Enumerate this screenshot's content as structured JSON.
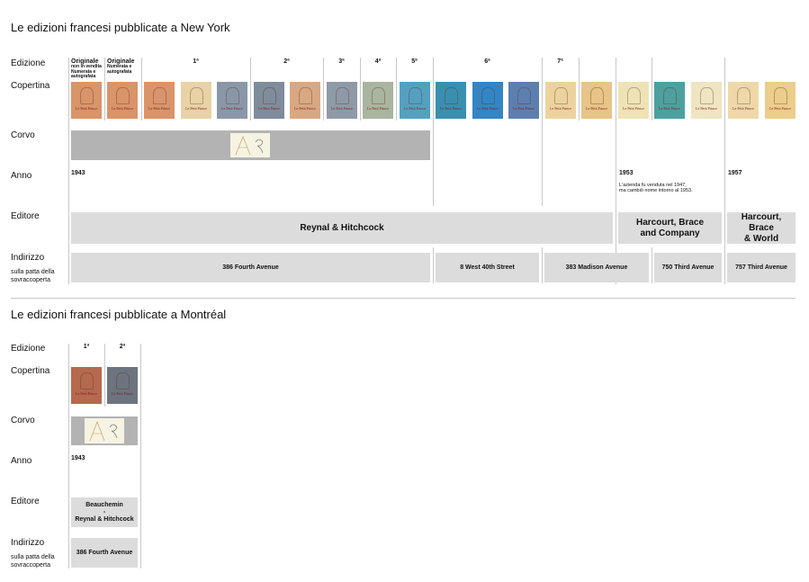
{
  "ny": {
    "title": "Le edizioni francesi pubblicate a New York",
    "labels": {
      "edizione": "Edizione",
      "copertina": "Copertina",
      "corvo": "Corvo",
      "anno": "Anno",
      "editore": "Editore",
      "indirizzo": "Indirizzo",
      "indirizzo_sub1": "sulla patta della",
      "indirizzo_sub2": "sovraccoperta"
    },
    "editions": {
      "orig1": "Originale",
      "orig1_sub1": "non in vendita",
      "orig1_sub2": "Numerata e",
      "orig1_sub3": "autografata",
      "orig2": "Originale",
      "orig2_sub1": "Numerata e",
      "orig2_sub2": "autografata",
      "e1": "1ª",
      "e2": "2ª",
      "e3": "3ª",
      "e4": "4ª",
      "e5": "5ª",
      "e6": "6ª",
      "e7": "7ª"
    },
    "cover_title": "Le Petit Prince",
    "years": {
      "y1943": "1943",
      "y1953": "1953",
      "note1953_line1": "L'azienda fu venduta nel 1947,",
      "note1953_line2": "ma cambiò nome intorno al 1953.",
      "y1957": "1957"
    },
    "publishers": {
      "reynal": "Reynal & Hitchcock",
      "hb_line1": "Harcourt, Brace",
      "hb_line2": "and Company",
      "hbw_line1": "Harcourt,",
      "hbw_line2": "Brace",
      "hbw_line3": "& World"
    },
    "addresses": {
      "a1": "386 Fourth Avenue",
      "a2": "8 West 40th Street",
      "a3": "383 Madison Avenue",
      "a4": "750 Third Avenue",
      "a5": "757 Third Avenue"
    },
    "colors": {
      "c1": "#d9946a",
      "c2": "#d9946a",
      "c3": "#d9946a",
      "c4": "#e8d2a6",
      "c5": "#8a97a8",
      "c6": "#7f8c9c",
      "c7": "#d9a882",
      "c8": "#8f9aa8",
      "c9": "#a9b59e",
      "c10": "#55a0c0",
      "c11": "#3a8fb0",
      "c12": "#3485c4",
      "c13": "#5d7fb0",
      "c14": "#ecd39e",
      "c15": "#e7c487",
      "c16": "#efe3b6",
      "c17": "#4ea09f",
      "c18": "#efe5c2",
      "c19": "#eed8a8",
      "c20": "#eccd8c"
    }
  },
  "mtl": {
    "title": "Le edizioni francesi pubblicate a Montréal",
    "labels": {
      "edizione": "Edizione",
      "copertina": "Copertina",
      "corvo": "Corvo",
      "anno": "Anno",
      "editore": "Editore",
      "indirizzo": "Indirizzo",
      "indirizzo_sub1": "sulla patta della",
      "indirizzo_sub2": "sovraccoperta"
    },
    "editions": {
      "e1": "1ª",
      "e2": "2ª"
    },
    "year": "1943",
    "publisher_line1": "Beauchemin",
    "publisher_line2": "-",
    "publisher_line3": "Reynal & Hitchcock",
    "address": "386 Fourth Avenue",
    "colors": {
      "c1": "#b5694f",
      "c2": "#6c7480"
    }
  }
}
